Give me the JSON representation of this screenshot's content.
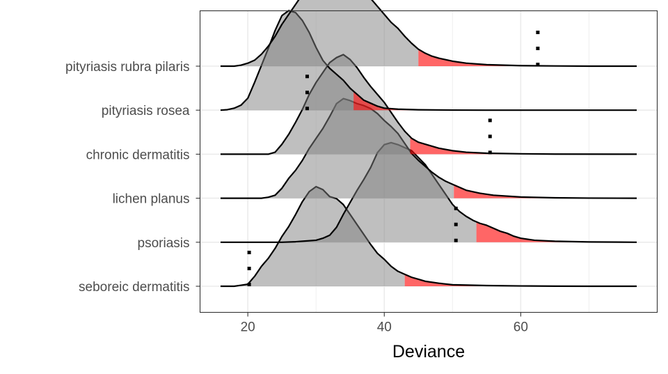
{
  "chart_data": {
    "type": "ridgeline",
    "title": "",
    "xlabel": "Deviance",
    "ylabel": "",
    "xlim": [
      13,
      80
    ],
    "x_ticks": [
      20,
      40,
      60
    ],
    "x_minor_ticks": [
      30,
      50,
      70
    ],
    "grid": true,
    "categories": [
      "seboreic dermatitis",
      "psoriasis",
      "lichen planus",
      "chronic dermatitis",
      "pityriasis rosea",
      "pityriasis rubra pilaris"
    ],
    "series": [
      {
        "name": "seboreic dermatitis",
        "density": [
          [
            16,
            0
          ],
          [
            18,
            0.0
          ],
          [
            19,
            0.01
          ],
          [
            20,
            0.02
          ],
          [
            21,
            0.1
          ],
          [
            22,
            0.2
          ],
          [
            23,
            0.28
          ],
          [
            24,
            0.38
          ],
          [
            25,
            0.5
          ],
          [
            26,
            0.6
          ],
          [
            27,
            0.72
          ],
          [
            28,
            0.85
          ],
          [
            29,
            0.95
          ],
          [
            30,
            1.0
          ],
          [
            31,
            0.97
          ],
          [
            32,
            0.9
          ],
          [
            33,
            0.88
          ],
          [
            34,
            0.82
          ],
          [
            35,
            0.72
          ],
          [
            36,
            0.62
          ],
          [
            37,
            0.52
          ],
          [
            38,
            0.42
          ],
          [
            39,
            0.33
          ],
          [
            40,
            0.27
          ],
          [
            41,
            0.2
          ],
          [
            42,
            0.15
          ],
          [
            43,
            0.12
          ],
          [
            44,
            0.09
          ],
          [
            45,
            0.07
          ],
          [
            46,
            0.05
          ],
          [
            48,
            0.03
          ],
          [
            50,
            0.015
          ],
          [
            55,
            0.007
          ],
          [
            60,
            0.003
          ],
          [
            65,
            0.001
          ],
          [
            70,
            0
          ],
          [
            77,
            0
          ]
        ],
        "threshold": 43,
        "observed": 20.2
      },
      {
        "name": "psoriasis",
        "density": [
          [
            16,
            0
          ],
          [
            25,
            0.0
          ],
          [
            27,
            0.005
          ],
          [
            28,
            0.01
          ],
          [
            30,
            0.02
          ],
          [
            31,
            0.04
          ],
          [
            32,
            0.07
          ],
          [
            33,
            0.15
          ],
          [
            34,
            0.28
          ],
          [
            35,
            0.4
          ],
          [
            36,
            0.52
          ],
          [
            37,
            0.63
          ],
          [
            38,
            0.75
          ],
          [
            39,
            0.9
          ],
          [
            40,
            0.98
          ],
          [
            41,
            1.0
          ],
          [
            42,
            0.98
          ],
          [
            43,
            0.95
          ],
          [
            44,
            0.92
          ],
          [
            45,
            0.85
          ],
          [
            46,
            0.78
          ],
          [
            47,
            0.68
          ],
          [
            48,
            0.58
          ],
          [
            49,
            0.48
          ],
          [
            50,
            0.38
          ],
          [
            51,
            0.31
          ],
          [
            52,
            0.26
          ],
          [
            53,
            0.22
          ],
          [
            54,
            0.19
          ],
          [
            55,
            0.17
          ],
          [
            56,
            0.14
          ],
          [
            57,
            0.11
          ],
          [
            58,
            0.09
          ],
          [
            59,
            0.06
          ],
          [
            60,
            0.04
          ],
          [
            62,
            0.02
          ],
          [
            65,
            0.01
          ],
          [
            70,
            0.003
          ],
          [
            77,
            0
          ]
        ],
        "threshold": 53.5,
        "observed": 50.5
      },
      {
        "name": "lichen planus",
        "density": [
          [
            16,
            0
          ],
          [
            22,
            0.0
          ],
          [
            23,
            0.01
          ],
          [
            24,
            0.03
          ],
          [
            25,
            0.1
          ],
          [
            26,
            0.2
          ],
          [
            27,
            0.28
          ],
          [
            28,
            0.38
          ],
          [
            29,
            0.5
          ],
          [
            30,
            0.6
          ],
          [
            31,
            0.7
          ],
          [
            32,
            0.82
          ],
          [
            33,
            0.95
          ],
          [
            34,
            1.0
          ],
          [
            35,
            0.98
          ],
          [
            36,
            0.95
          ],
          [
            37,
            0.93
          ],
          [
            38,
            0.9
          ],
          [
            39,
            0.85
          ],
          [
            40,
            0.78
          ],
          [
            41,
            0.72
          ],
          [
            42,
            0.65
          ],
          [
            43,
            0.55
          ],
          [
            44,
            0.45
          ],
          [
            45,
            0.38
          ],
          [
            46,
            0.32
          ],
          [
            47,
            0.26
          ],
          [
            48,
            0.21
          ],
          [
            49,
            0.17
          ],
          [
            50,
            0.14
          ],
          [
            51,
            0.11
          ],
          [
            52,
            0.08
          ],
          [
            54,
            0.05
          ],
          [
            56,
            0.03
          ],
          [
            60,
            0.012
          ],
          [
            65,
            0.004
          ],
          [
            70,
            0.001
          ],
          [
            77,
            0
          ]
        ],
        "threshold": 50.2,
        "observed": null
      },
      {
        "name": "chronic dermatitis",
        "density": [
          [
            16,
            0
          ],
          [
            23,
            0.0
          ],
          [
            24,
            0.02
          ],
          [
            25,
            0.1
          ],
          [
            26,
            0.2
          ],
          [
            27,
            0.32
          ],
          [
            28,
            0.45
          ],
          [
            29,
            0.6
          ],
          [
            30,
            0.72
          ],
          [
            31,
            0.82
          ],
          [
            32,
            0.92
          ],
          [
            33,
            0.97
          ],
          [
            34,
            1.0
          ],
          [
            35,
            0.95
          ],
          [
            36,
            0.87
          ],
          [
            37,
            0.77
          ],
          [
            38,
            0.68
          ],
          [
            39,
            0.6
          ],
          [
            40,
            0.52
          ],
          [
            41,
            0.42
          ],
          [
            42,
            0.32
          ],
          [
            43,
            0.23
          ],
          [
            44,
            0.16
          ],
          [
            45,
            0.12
          ],
          [
            46,
            0.1
          ],
          [
            47,
            0.08
          ],
          [
            48,
            0.06
          ],
          [
            50,
            0.035
          ],
          [
            52,
            0.02
          ],
          [
            55,
            0.01
          ],
          [
            60,
            0.004
          ],
          [
            65,
            0.001
          ],
          [
            77,
            0
          ]
        ],
        "threshold": 43.8,
        "observed": 55.5
      },
      {
        "name": "pityriasis rosea",
        "density": [
          [
            16,
            0
          ],
          [
            17,
            0.005
          ],
          [
            18,
            0.02
          ],
          [
            19,
            0.05
          ],
          [
            20,
            0.12
          ],
          [
            21,
            0.28
          ],
          [
            22,
            0.45
          ],
          [
            23,
            0.62
          ],
          [
            24,
            0.8
          ],
          [
            25,
            0.95
          ],
          [
            26,
            1.0
          ],
          [
            27,
            0.98
          ],
          [
            28,
            0.9
          ],
          [
            29,
            0.78
          ],
          [
            30,
            0.63
          ],
          [
            31,
            0.5
          ],
          [
            32,
            0.42
          ],
          [
            33,
            0.36
          ],
          [
            34,
            0.3
          ],
          [
            35,
            0.22
          ],
          [
            36,
            0.16
          ],
          [
            37,
            0.1
          ],
          [
            38,
            0.07
          ],
          [
            39,
            0.04
          ],
          [
            40,
            0.02
          ],
          [
            42,
            0.01
          ],
          [
            45,
            0.004
          ],
          [
            50,
            0.001
          ],
          [
            55,
            0
          ],
          [
            77,
            0
          ]
        ],
        "threshold": 35.5,
        "observed": 28.7
      },
      {
        "name": "pityriasis rubra pilaris",
        "density": [
          [
            16,
            0
          ],
          [
            18,
            0.0
          ],
          [
            19,
            0.01
          ],
          [
            20,
            0.03
          ],
          [
            21,
            0.06
          ],
          [
            22,
            0.12
          ],
          [
            23,
            0.2
          ],
          [
            24,
            0.3
          ],
          [
            25,
            0.42
          ],
          [
            26,
            0.52
          ],
          [
            27,
            0.62
          ],
          [
            28,
            0.72
          ],
          [
            29,
            0.82
          ],
          [
            30,
            0.9
          ],
          [
            31,
            0.96
          ],
          [
            32,
            1.0
          ],
          [
            33,
            0.99
          ],
          [
            34,
            0.96
          ],
          [
            35,
            0.9
          ],
          [
            36,
            0.83
          ],
          [
            37,
            0.76
          ],
          [
            38,
            0.68
          ],
          [
            39,
            0.6
          ],
          [
            40,
            0.52
          ],
          [
            41,
            0.44
          ],
          [
            42,
            0.38
          ],
          [
            43,
            0.3
          ],
          [
            44,
            0.23
          ],
          [
            45,
            0.17
          ],
          [
            46,
            0.13
          ],
          [
            47,
            0.1
          ],
          [
            48,
            0.08
          ],
          [
            50,
            0.05
          ],
          [
            52,
            0.03
          ],
          [
            55,
            0.015
          ],
          [
            60,
            0.005
          ],
          [
            65,
            0.002
          ],
          [
            70,
            0
          ],
          [
            77,
            0
          ]
        ],
        "threshold": 45,
        "observed": 62.5
      }
    ]
  }
}
